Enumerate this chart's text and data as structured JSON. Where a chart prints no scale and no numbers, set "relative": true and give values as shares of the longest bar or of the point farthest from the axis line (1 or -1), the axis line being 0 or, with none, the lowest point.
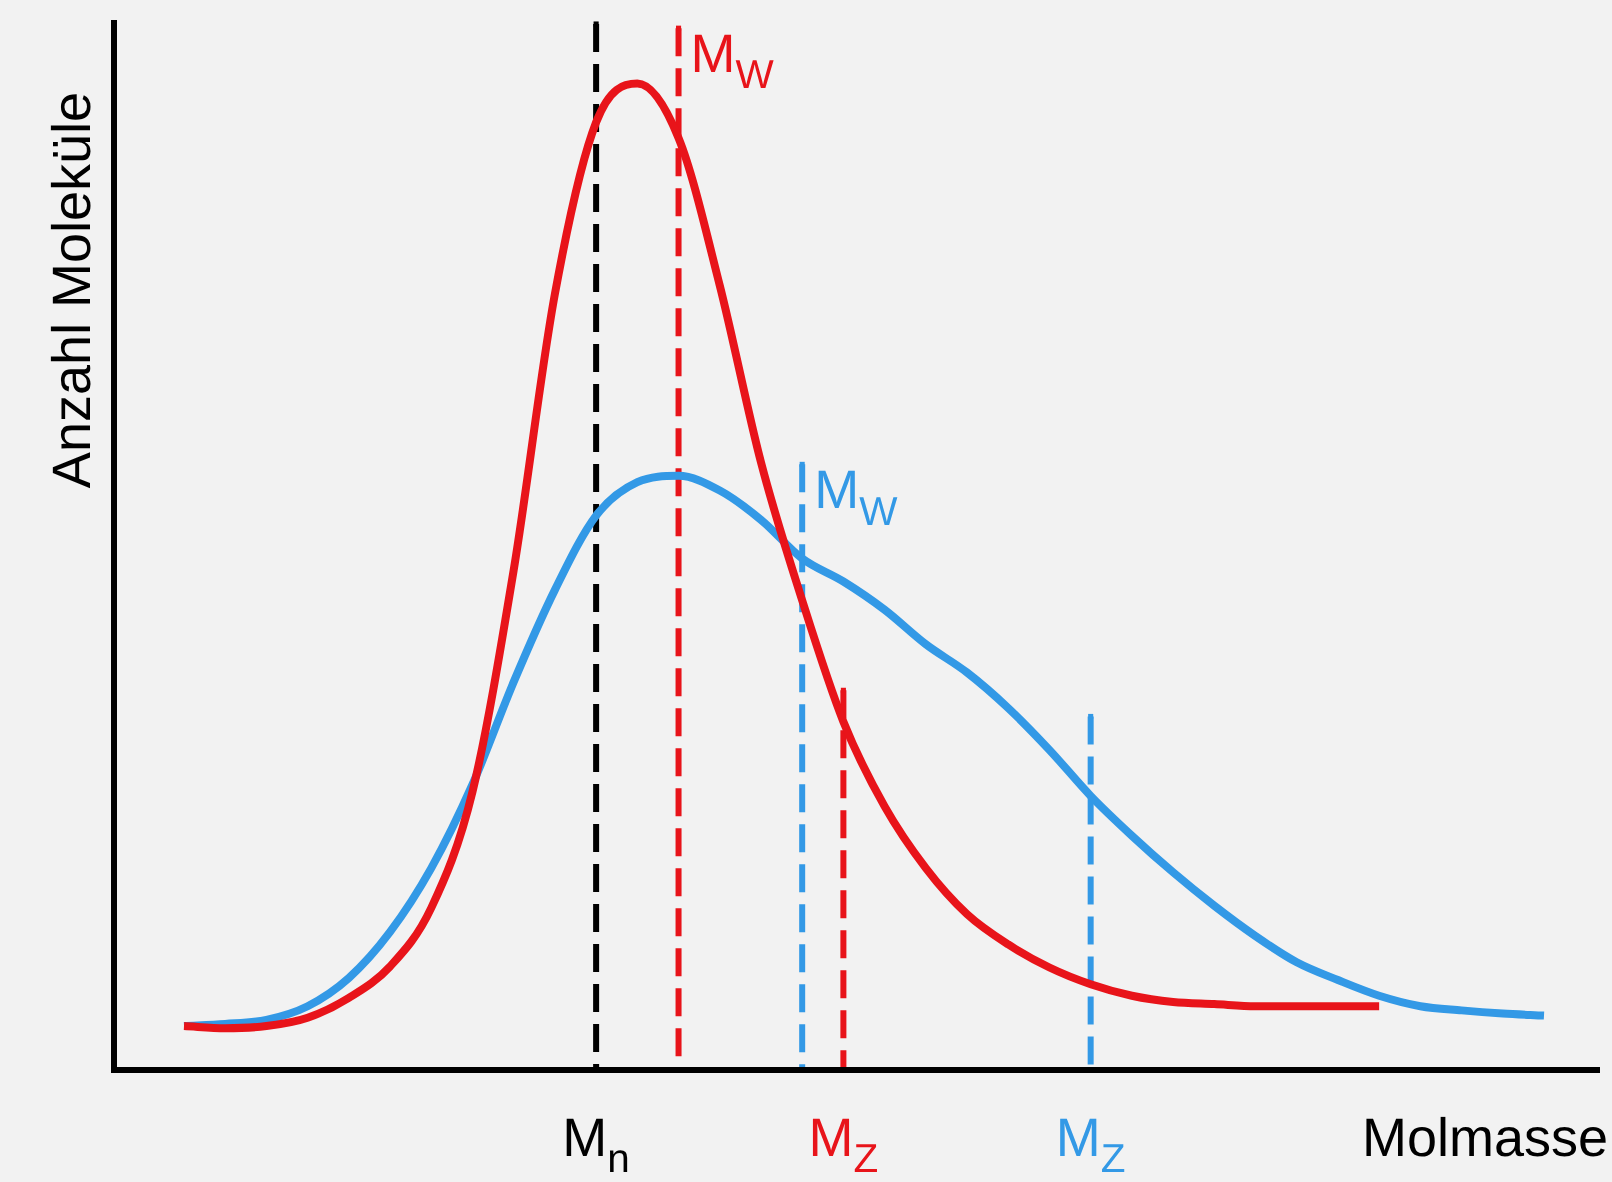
{
  "chart_data": {
    "type": "line",
    "relative": true,
    "xlabel": "Molmasse",
    "ylabel": "Anzahl Moleküle",
    "tick_labels": "x",
    "grid": false,
    "legend": false,
    "marker": "none",
    "categories": [
      null,
      null,
      null,
      null,
      null,
      null,
      null,
      null,
      null,
      null,
      "M$_{n}$",
      null,
      null,
      null,
      null,
      null,
      "M$_{Z}$",
      null,
      null,
      null,
      null,
      null,
      "M$_{Z}$",
      null,
      null,
      null,
      null,
      null,
      null,
      null,
      null,
      null,
      null,
      null
    ],
    "series": [
      {
        "color": "#e8141a",
        "values": [
          0.042,
          0.04,
          0.042,
          0.05,
          0.069,
          0.099,
          0.155,
          0.266,
          0.478,
          0.742,
          0.906,
          0.943,
          0.891,
          0.75,
          0.581,
          0.449,
          0.333,
          0.252,
          0.193,
          0.149,
          0.12,
          0.098,
          0.082,
          0.071,
          0.065,
          0.063,
          0.061,
          0.061,
          0.061,
          0.061,
          null,
          null,
          null,
          null
        ]
      },
      {
        "color": "#3399e6",
        "values": [
          0.042,
          0.044,
          0.048,
          0.061,
          0.088,
          0.132,
          0.193,
          0.273,
          0.371,
          0.459,
          0.53,
          0.562,
          0.568,
          0.554,
          0.526,
          0.489,
          0.467,
          0.44,
          0.407,
          0.38,
          0.346,
          0.306,
          0.262,
          0.224,
          0.189,
          0.157,
          0.128,
          0.103,
          0.086,
          0.071,
          0.061,
          0.057,
          0.054,
          0.052
        ]
      },
      {
        "type": "lollipop",
        "marker": "square",
        "color": "#000000",
        "line_style": "dashed",
        "values": [
          null,
          null,
          null,
          null,
          null,
          null,
          null,
          null,
          null,
          null,
          1,
          null,
          null,
          null,
          null,
          null,
          null,
          null,
          null,
          null,
          null,
          null,
          null,
          null,
          null,
          null,
          null,
          null,
          null,
          null,
          null,
          null,
          null,
          null
        ]
      },
      {
        "type": "lollipop",
        "marker": "square",
        "name": "M$_{W}$",
        "color": "#e8141a",
        "line_style": "dashed",
        "values": [
          null,
          null,
          null,
          null,
          null,
          null,
          null,
          null,
          null,
          null,
          null,
          null,
          0.996,
          null,
          null,
          null,
          null,
          null,
          null,
          null,
          null,
          null,
          null,
          null,
          null,
          null,
          null,
          null,
          null,
          null,
          null,
          null,
          null,
          null
        ]
      },
      {
        "type": "lollipop",
        "marker": "square",
        "name": "M$_{W}$",
        "color": "#3399e6",
        "line_style": "dashed",
        "values": [
          null,
          null,
          null,
          null,
          null,
          null,
          null,
          null,
          null,
          null,
          null,
          null,
          null,
          null,
          null,
          0.579,
          null,
          null,
          null,
          null,
          null,
          null,
          null,
          null,
          null,
          null,
          null,
          null,
          null,
          null,
          null,
          null,
          null,
          null
        ]
      },
      {
        "type": "lollipop",
        "marker": "square",
        "color": "#e8141a",
        "line_style": "dashed",
        "values": [
          null,
          null,
          null,
          null,
          null,
          null,
          null,
          null,
          null,
          null,
          null,
          null,
          null,
          null,
          null,
          null,
          0.363,
          null,
          null,
          null,
          null,
          null,
          null,
          null,
          null,
          null,
          null,
          null,
          null,
          null,
          null,
          null,
          null,
          null
        ]
      },
      {
        "type": "lollipop",
        "marker": "square",
        "color": "#3399e6",
        "line_style": "dashed",
        "values": [
          null,
          null,
          null,
          null,
          null,
          null,
          null,
          null,
          null,
          null,
          null,
          null,
          null,
          null,
          null,
          null,
          null,
          null,
          null,
          null,
          null,
          null,
          0.338,
          null,
          null,
          null,
          null,
          null,
          null,
          null,
          null,
          null,
          null,
          null
        ]
      }
    ]
  }
}
